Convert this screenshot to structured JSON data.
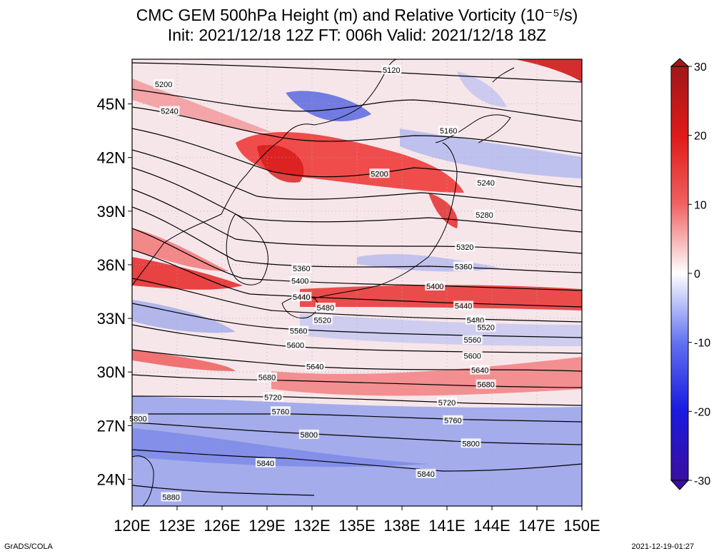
{
  "title_line1": "CMC GEM 500hPa Height (m) and Relative Vorticity (10⁻⁵/s)",
  "title_line2": "Init: 2021/12/18 12Z  FT: 006h  Valid: 2021/12/18 18Z",
  "footer_left": "GrADS/COLA",
  "footer_right": "2021-12-19-01:27",
  "map": {
    "lon_ticks": [
      "120E",
      "123E",
      "126E",
      "129E",
      "132E",
      "135E",
      "138E",
      "141E",
      "144E",
      "147E",
      "150E"
    ],
    "lat_ticks": [
      "45N",
      "42N",
      "39N",
      "36N",
      "33N",
      "30N",
      "27N",
      "24N"
    ],
    "contour_labels": [
      {
        "text": "5120",
        "lon": 137.3,
        "lat": 46.9
      },
      {
        "text": "5160",
        "lon": 141.1,
        "lat": 43.5
      },
      {
        "text": "5200",
        "lon": 122.1,
        "lat": 46.1
      },
      {
        "text": "5200",
        "lon": 136.5,
        "lat": 41.1
      },
      {
        "text": "5240",
        "lon": 122.5,
        "lat": 44.6
      },
      {
        "text": "5240",
        "lon": 143.6,
        "lat": 40.6
      },
      {
        "text": "5280",
        "lon": 143.5,
        "lat": 38.8
      },
      {
        "text": "5320",
        "lon": 142.2,
        "lat": 37.0
      },
      {
        "text": "5360",
        "lon": 131.3,
        "lat": 35.8
      },
      {
        "text": "5360",
        "lon": 142.1,
        "lat": 35.9
      },
      {
        "text": "5400",
        "lon": 131.2,
        "lat": 35.1
      },
      {
        "text": "5400",
        "lon": 140.2,
        "lat": 34.8
      },
      {
        "text": "5440",
        "lon": 131.3,
        "lat": 34.2
      },
      {
        "text": "5440",
        "lon": 142.1,
        "lat": 33.7
      },
      {
        "text": "5480",
        "lon": 132.9,
        "lat": 33.6
      },
      {
        "text": "5480",
        "lon": 142.9,
        "lat": 32.9
      },
      {
        "text": "5520",
        "lon": 132.7,
        "lat": 32.9
      },
      {
        "text": "5520",
        "lon": 143.6,
        "lat": 32.5
      },
      {
        "text": "5560",
        "lon": 131.1,
        "lat": 32.3
      },
      {
        "text": "5560",
        "lon": 142.7,
        "lat": 31.8
      },
      {
        "text": "5600",
        "lon": 130.9,
        "lat": 31.5
      },
      {
        "text": "5600",
        "lon": 142.7,
        "lat": 30.9
      },
      {
        "text": "5640",
        "lon": 132.2,
        "lat": 30.3
      },
      {
        "text": "5640",
        "lon": 143.2,
        "lat": 30.1
      },
      {
        "text": "5680",
        "lon": 129.0,
        "lat": 29.7
      },
      {
        "text": "5680",
        "lon": 143.6,
        "lat": 29.3
      },
      {
        "text": "5720",
        "lon": 129.4,
        "lat": 28.6
      },
      {
        "text": "5720",
        "lon": 141.0,
        "lat": 28.3
      },
      {
        "text": "5760",
        "lon": 129.9,
        "lat": 27.8
      },
      {
        "text": "5760",
        "lon": 141.4,
        "lat": 27.3
      },
      {
        "text": "5800",
        "lon": 120.4,
        "lat": 27.4
      },
      {
        "text": "5800",
        "lon": 131.8,
        "lat": 26.5
      },
      {
        "text": "5800",
        "lon": 142.6,
        "lat": 26.0
      },
      {
        "text": "5840",
        "lon": 128.9,
        "lat": 24.9
      },
      {
        "text": "5840",
        "lon": 139.6,
        "lat": 24.3
      },
      {
        "text": "5880",
        "lon": 122.6,
        "lat": 23.0
      }
    ]
  },
  "colorbar": {
    "labels": [
      "30",
      "20",
      "10",
      "0",
      "-10",
      "-20",
      "-30"
    ]
  }
}
